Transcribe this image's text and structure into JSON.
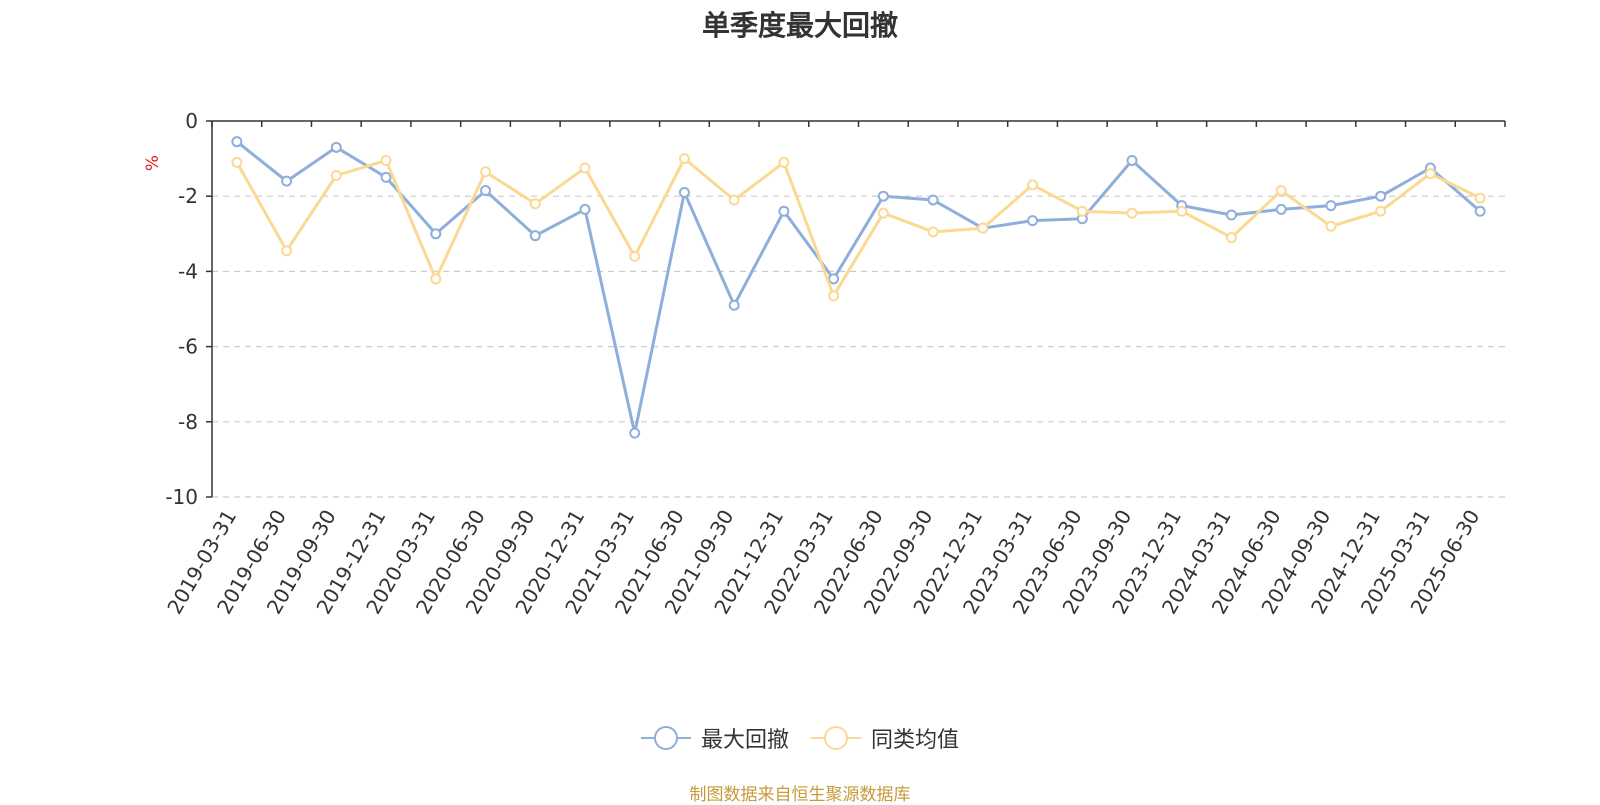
{
  "chart_data": {
    "type": "line",
    "title": "单季度最大回撤",
    "ylabel": "%",
    "ylim": [
      -10,
      0
    ],
    "yticks": [
      0,
      -2,
      -4,
      -6,
      -8,
      -10
    ],
    "grid": true,
    "legend_position": "bottom",
    "categories": [
      "2019-03-31",
      "2019-06-30",
      "2019-09-30",
      "2019-12-31",
      "2020-03-31",
      "2020-06-30",
      "2020-09-30",
      "2020-12-31",
      "2021-03-31",
      "2021-06-30",
      "2021-09-30",
      "2021-12-31",
      "2022-03-31",
      "2022-06-30",
      "2022-09-30",
      "2022-12-31",
      "2023-03-31",
      "2023-06-30",
      "2023-09-30",
      "2023-12-31",
      "2024-03-31",
      "2024-06-30",
      "2024-09-30",
      "2024-12-31",
      "2025-03-31",
      "2025-06-30"
    ],
    "series": [
      {
        "name": "最大回撤",
        "color": "#8eaedb",
        "values": [
          -0.55,
          -1.6,
          -0.7,
          -1.5,
          -3.0,
          -1.85,
          -3.05,
          -2.35,
          -8.3,
          -1.9,
          -4.9,
          -2.4,
          -4.2,
          -2.0,
          -2.1,
          -2.85,
          -2.65,
          -2.6,
          -1.05,
          -2.25,
          -2.5,
          -2.35,
          -2.25,
          -2.0,
          -1.25,
          -2.4
        ]
      },
      {
        "name": "同类均值",
        "color": "#fcd993",
        "values": [
          -1.1,
          -3.45,
          -1.45,
          -1.05,
          -4.2,
          -1.35,
          -2.2,
          -1.25,
          -3.6,
          -1.0,
          -2.1,
          -1.1,
          -4.65,
          -2.45,
          -2.95,
          -2.85,
          -1.7,
          -2.4,
          -2.45,
          -2.4,
          -3.1,
          -1.85,
          -2.8,
          -2.4,
          -1.4,
          -2.05
        ]
      }
    ]
  },
  "source_note": "制图数据来自恒生聚源数据库",
  "source_color": "#c89a3a",
  "ylabel_color": "#e02020"
}
